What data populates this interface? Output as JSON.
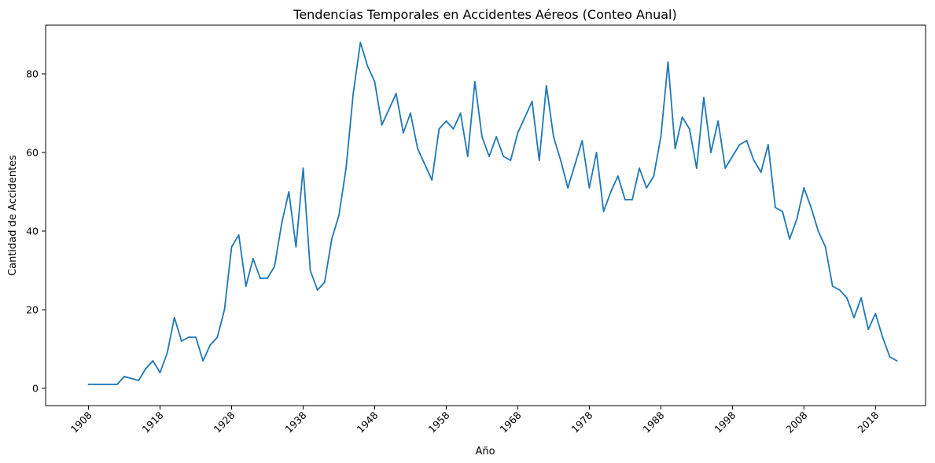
{
  "chart_data": {
    "type": "line",
    "title": "Tendencias Temporales en Accidentes Aéreos (Conteo Anual)",
    "xlabel": "Año",
    "ylabel": "Cantidad de Accidentes",
    "xlim": [
      1902,
      2025
    ],
    "ylim": [
      -4.4,
      92.4
    ],
    "xticks": [
      1908,
      1918,
      1928,
      1938,
      1948,
      1958,
      1968,
      1978,
      1988,
      1998,
      2008,
      2018
    ],
    "yticks": [
      0,
      20,
      40,
      60,
      80
    ],
    "grid": false,
    "color": "#1f77b4",
    "series": [
      {
        "x": [
          1908,
          1909,
          1910,
          1911,
          1912,
          1913,
          1914,
          1915,
          1916,
          1917,
          1918,
          1919,
          1920,
          1921,
          1922,
          1923,
          1924,
          1925,
          1926,
          1927,
          1928,
          1929,
          1930,
          1931,
          1932,
          1933,
          1934,
          1935,
          1936,
          1937,
          1938,
          1939,
          1940,
          1941,
          1942,
          1943,
          1944,
          1945,
          1946,
          1947,
          1948,
          1949,
          1950,
          1951,
          1952,
          1953,
          1954,
          1955,
          1956,
          1957,
          1958,
          1959,
          1960,
          1961,
          1962,
          1963,
          1964,
          1965,
          1966,
          1967,
          1968,
          1969,
          1970,
          1971,
          1972,
          1973,
          1974,
          1975,
          1976,
          1977,
          1978,
          1979,
          1980,
          1981,
          1982,
          1983,
          1984,
          1985,
          1986,
          1987,
          1988,
          1989,
          1990,
          1991,
          1992,
          1993,
          1994,
          1995,
          1996,
          1997,
          1998,
          1999,
          2000,
          2001,
          2002,
          2003,
          2004,
          2005,
          2006,
          2007,
          2008,
          2009,
          2010,
          2011,
          2012,
          2013,
          2014,
          2015,
          2016,
          2017,
          2018,
          2019,
          2020,
          2021
        ],
        "values": [
          1,
          1,
          1,
          1,
          1,
          3,
          2.5,
          2,
          5,
          7,
          4,
          9,
          18,
          12,
          13,
          13,
          7,
          11,
          13,
          20,
          36,
          39,
          26,
          33,
          28,
          28,
          31,
          42,
          50,
          36,
          56,
          30,
          25,
          27,
          38,
          44,
          56,
          75,
          88,
          82,
          78,
          67,
          71,
          75,
          65,
          70,
          61,
          57,
          53,
          66,
          68,
          66,
          70,
          59,
          78,
          64,
          59,
          64,
          59,
          58,
          65,
          69,
          73,
          58,
          77,
          64,
          58,
          51,
          57,
          63,
          51,
          60,
          45,
          50,
          54,
          48,
          48,
          56,
          51,
          54,
          64,
          83,
          61,
          69,
          66,
          56,
          74,
          60,
          68,
          56,
          59,
          62,
          63,
          58,
          55,
          62,
          46,
          45,
          38,
          43,
          51,
          46,
          40,
          36,
          26,
          25,
          23,
          18,
          23,
          15,
          19,
          13,
          8,
          7
        ]
      }
    ]
  }
}
